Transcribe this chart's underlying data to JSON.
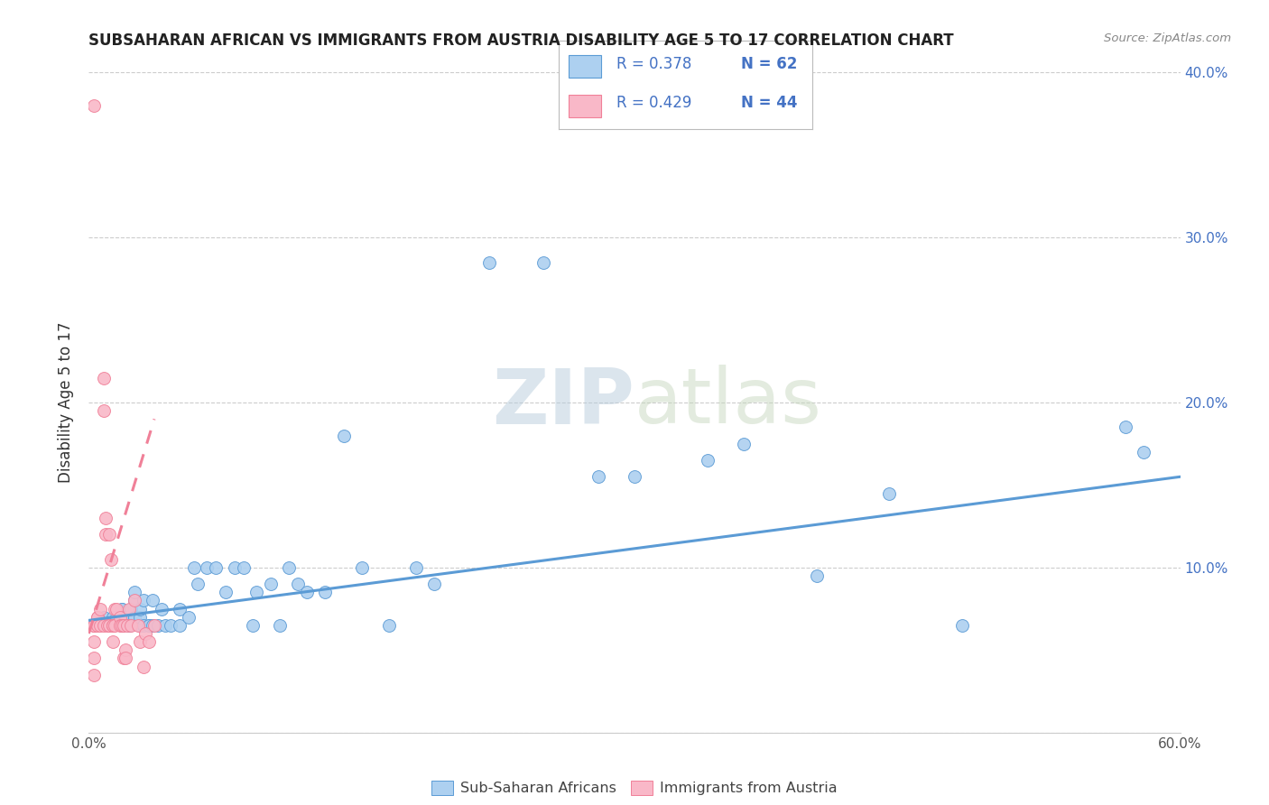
{
  "title": "SUBSAHARAN AFRICAN VS IMMIGRANTS FROM AUSTRIA DISABILITY AGE 5 TO 17 CORRELATION CHART",
  "source": "Source: ZipAtlas.com",
  "ylabel": "Disability Age 5 to 17",
  "xlim": [
    0.0,
    0.6
  ],
  "ylim": [
    0.0,
    0.4
  ],
  "xticks": [
    0.0,
    0.1,
    0.2,
    0.3,
    0.4,
    0.5,
    0.6
  ],
  "yticks": [
    0.0,
    0.1,
    0.2,
    0.3,
    0.4
  ],
  "xtick_labels": [
    "0.0%",
    "",
    "",
    "",
    "",
    "",
    "60.0%"
  ],
  "ytick_labels_right": [
    "",
    "10.0%",
    "20.0%",
    "30.0%",
    "40.0%"
  ],
  "legend_r1": "R = 0.378",
  "legend_n1": "N = 62",
  "legend_r2": "R = 0.429",
  "legend_n2": "N = 44",
  "color_blue": "#ADD0F0",
  "color_pink": "#F9B8C8",
  "color_line_blue": "#5B9BD5",
  "color_line_pink": "#F08098",
  "color_text_blue": "#4472C4",
  "watermark_zip": "ZIP",
  "watermark_atlas": "atlas",
  "blue_scatter_x": [
    0.008,
    0.013,
    0.015,
    0.018,
    0.018,
    0.018,
    0.018,
    0.018,
    0.02,
    0.022,
    0.023,
    0.025,
    0.025,
    0.025,
    0.025,
    0.028,
    0.028,
    0.028,
    0.03,
    0.03,
    0.033,
    0.033,
    0.035,
    0.035,
    0.038,
    0.04,
    0.042,
    0.045,
    0.05,
    0.05,
    0.055,
    0.058,
    0.06,
    0.065,
    0.07,
    0.075,
    0.08,
    0.085,
    0.09,
    0.092,
    0.1,
    0.105,
    0.11,
    0.115,
    0.12,
    0.13,
    0.14,
    0.15,
    0.165,
    0.18,
    0.19,
    0.22,
    0.25,
    0.28,
    0.3,
    0.34,
    0.36,
    0.4,
    0.44,
    0.48,
    0.57,
    0.58
  ],
  "blue_scatter_y": [
    0.07,
    0.07,
    0.07,
    0.075,
    0.07,
    0.075,
    0.065,
    0.065,
    0.07,
    0.065,
    0.075,
    0.07,
    0.07,
    0.08,
    0.085,
    0.065,
    0.07,
    0.075,
    0.065,
    0.08,
    0.065,
    0.065,
    0.065,
    0.08,
    0.065,
    0.075,
    0.065,
    0.065,
    0.065,
    0.075,
    0.07,
    0.1,
    0.09,
    0.1,
    0.1,
    0.085,
    0.1,
    0.1,
    0.065,
    0.085,
    0.09,
    0.065,
    0.1,
    0.09,
    0.085,
    0.085,
    0.18,
    0.1,
    0.065,
    0.1,
    0.09,
    0.285,
    0.285,
    0.155,
    0.155,
    0.165,
    0.175,
    0.095,
    0.145,
    0.065,
    0.185,
    0.17
  ],
  "pink_scatter_x": [
    0.003,
    0.003,
    0.003,
    0.003,
    0.003,
    0.003,
    0.003,
    0.005,
    0.005,
    0.005,
    0.006,
    0.006,
    0.008,
    0.008,
    0.008,
    0.009,
    0.009,
    0.01,
    0.011,
    0.011,
    0.012,
    0.013,
    0.013,
    0.013,
    0.014,
    0.014,
    0.015,
    0.017,
    0.017,
    0.018,
    0.019,
    0.019,
    0.02,
    0.02,
    0.021,
    0.022,
    0.023,
    0.025,
    0.027,
    0.028,
    0.03,
    0.031,
    0.033,
    0.036
  ],
  "pink_scatter_y": [
    0.38,
    0.065,
    0.065,
    0.065,
    0.055,
    0.045,
    0.035,
    0.07,
    0.07,
    0.065,
    0.075,
    0.065,
    0.215,
    0.195,
    0.065,
    0.13,
    0.12,
    0.065,
    0.065,
    0.12,
    0.105,
    0.065,
    0.065,
    0.055,
    0.075,
    0.065,
    0.075,
    0.07,
    0.065,
    0.065,
    0.065,
    0.045,
    0.05,
    0.045,
    0.065,
    0.075,
    0.065,
    0.08,
    0.065,
    0.055,
    0.04,
    0.06,
    0.055,
    0.065
  ],
  "blue_trend_x": [
    0.0,
    0.6
  ],
  "blue_trend_y": [
    0.068,
    0.155
  ],
  "pink_trend_x": [
    0.0,
    0.036
  ],
  "pink_trend_y": [
    0.06,
    0.19
  ]
}
